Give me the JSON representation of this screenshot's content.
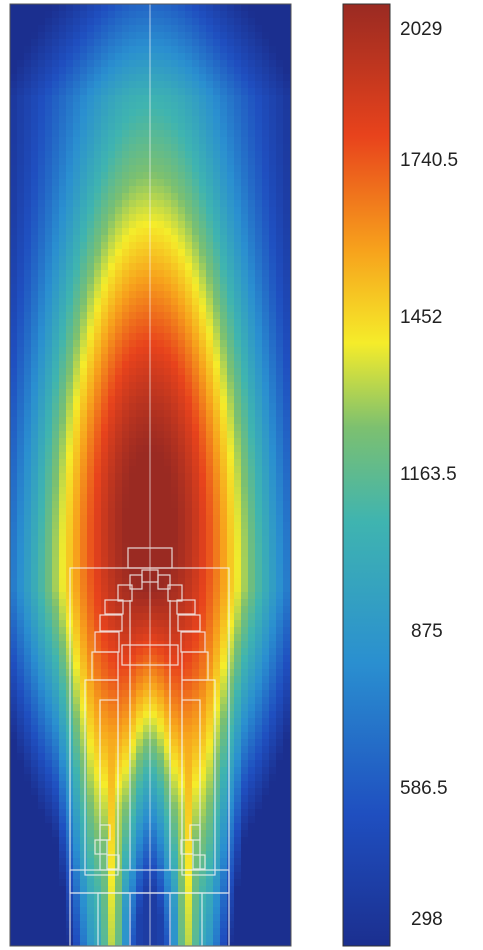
{
  "chart_data": {
    "type": "heatmap",
    "title": "",
    "xlabel": "",
    "ylabel": "",
    "colorbar": {
      "min": 298,
      "max": 2029,
      "ticks": [
        2029,
        1740.5,
        1452,
        1163.5,
        875,
        586.5,
        298
      ],
      "tick_labels": [
        "2029",
        "1740.5",
        "1452",
        "1163.5",
        "875",
        "586.5",
        "298"
      ],
      "colormap": [
        "#1b2f8f",
        "#1f4fc0",
        "#2a8fd0",
        "#3fb4b0",
        "#7cc070",
        "#f5ec2a",
        "#f7a11c",
        "#e8431c",
        "#9a2a22"
      ]
    },
    "field": {
      "description": "symmetric plume temperature field, peak near centre above nozzles",
      "symmetry": "mirror about vertical centreline",
      "max_value": 2029,
      "min_value": 298
    },
    "grid": true
  }
}
